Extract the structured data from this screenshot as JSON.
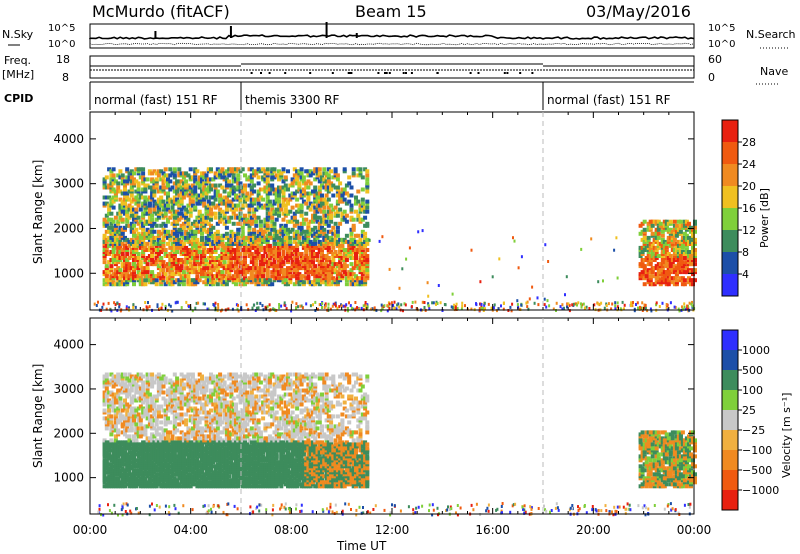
{
  "header": {
    "station": "McMurdo (fitACF)",
    "beam": "Beam 15",
    "date": "03/May/2016"
  },
  "noise_panel": {
    "left_label": "N.Sky",
    "right_label": "N.Search",
    "left_ticks": [
      "10^5",
      "10^0"
    ],
    "right_ticks": [
      "10^5",
      "10^0"
    ]
  },
  "freq_panel": {
    "left_label": "Freq.",
    "left_unit": "[MHz]",
    "right_label": "Nave",
    "left_ticks": [
      "18",
      "8"
    ],
    "right_ticks": [
      "60",
      "0"
    ]
  },
  "cpid_panel": {
    "label": "CPID",
    "segments": [
      {
        "start": 0,
        "end": 6,
        "text": "normal (fast) 151 RF"
      },
      {
        "start": 6,
        "end": 18,
        "text": "themis 3300 RF"
      },
      {
        "start": 18,
        "end": 24,
        "text": "normal (fast) 151 RF"
      }
    ]
  },
  "colors": {
    "power_scale": [
      "#2f2fff",
      "#1c4fa8",
      "#3d8c5c",
      "#7fcf3a",
      "#f0c020",
      "#f08a20",
      "#f05a10",
      "#e82010"
    ],
    "velocity_scale": [
      "#e82010",
      "#f05a10",
      "#f08a20",
      "#f0b040",
      "#c8c8c8",
      "#7fcf3a",
      "#3d8c5c",
      "#1c4fa8",
      "#2f2fff"
    ]
  },
  "chart_data": [
    {
      "type": "heatmap",
      "title": "",
      "xlabel": "",
      "ylabel": "Slant Range [km]",
      "xlim": [
        0,
        24
      ],
      "ylim": [
        180,
        4600
      ],
      "y_ticks": [
        1000,
        2000,
        3000,
        4000
      ],
      "x_ticks": [
        "00:00",
        "04:00",
        "08:00",
        "12:00",
        "16:00",
        "20:00",
        "00:00"
      ],
      "colorbar": {
        "label": "Power [dB]",
        "ticks": [
          "4",
          "8",
          "12",
          "16",
          "20",
          "24",
          "28"
        ],
        "range": [
          0,
          32
        ]
      },
      "regions": [
        {
          "x": [
            0.4,
            11.0
          ],
          "y": [
            800,
            3400
          ],
          "dominant": "mixed 8-28 dB, strongest 1000-1800 km near 06:30-09:00"
        },
        {
          "x": [
            21.8,
            24.0
          ],
          "y": [
            800,
            2200
          ],
          "dominant": "12-28 dB"
        },
        {
          "x": [
            0.0,
            24.0
          ],
          "y": [
            180,
            400
          ],
          "dominant": "sparse ground scatter"
        }
      ]
    },
    {
      "type": "heatmap",
      "title": "",
      "xlabel": "Time UT",
      "ylabel": "Slant Range [km]",
      "xlim": [
        0,
        24
      ],
      "ylim": [
        180,
        4600
      ],
      "y_ticks": [
        1000,
        2000,
        3000,
        4000
      ],
      "x_ticks": [
        "00:00",
        "04:00",
        "08:00",
        "12:00",
        "16:00",
        "20:00",
        "00:00"
      ],
      "colorbar": {
        "label": "Velocity [m s⁻¹]",
        "ticks": [
          "1000",
          "500",
          "100",
          "25",
          "−25",
          "−100",
          "−500",
          "−1000"
        ]
      },
      "regions": [
        {
          "x": [
            0.4,
            11.0
          ],
          "y": [
            900,
            1800
          ],
          "dominant": "100 to 500 m/s (green)"
        },
        {
          "x": [
            0.4,
            11.0
          ],
          "y": [
            1800,
            3400
          ],
          "dominant": "-25 to 25 m/s (grey) with -100 (orange)"
        },
        {
          "x": [
            21.8,
            24.0
          ],
          "y": [
            900,
            2100
          ],
          "dominant": "mixed orange and green"
        }
      ]
    }
  ]
}
